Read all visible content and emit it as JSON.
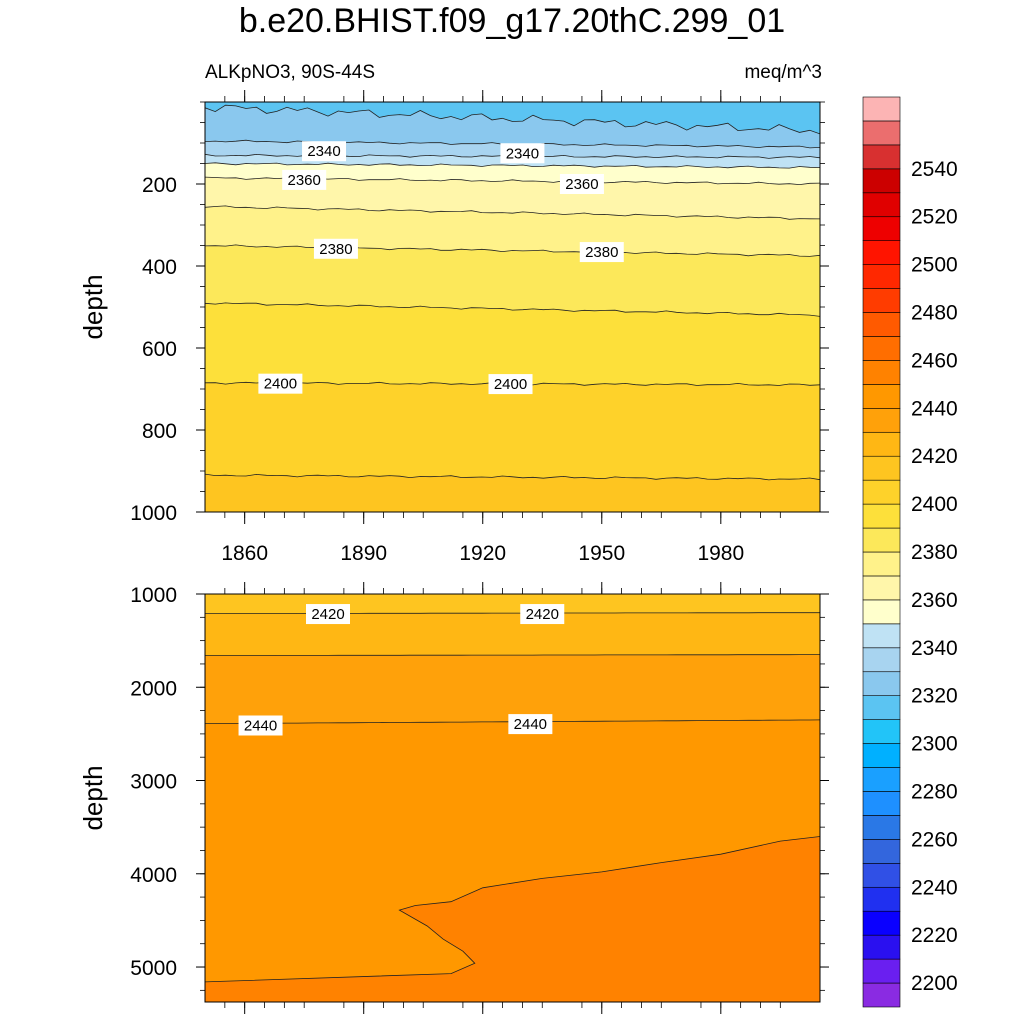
{
  "chart_data": {
    "type": "contour",
    "title": "b.e20.BHIST.f09_g17.20thC.299_01",
    "subtitle_left": "ALKpNO3, 90S-44S",
    "subtitle_right": "meq/m^3",
    "x_ticks": [
      "1860",
      "1890",
      "1920",
      "1950",
      "1980"
    ],
    "xlim": [
      1850,
      2005
    ],
    "ylabel": "depth",
    "panels": [
      {
        "name": "upper",
        "ylim": [
          0,
          1000
        ],
        "y_ticks": [
          "200",
          "400",
          "600",
          "800",
          "1000"
        ],
        "contour_lines": [
          {
            "level": 2320,
            "depth_start": 12,
            "depth_end": 70
          },
          {
            "level": 2330,
            "depth_start": 95,
            "depth_end": 110
          },
          {
            "level": 2340,
            "depth_start": 130,
            "depth_end": 135
          },
          {
            "level": 2350,
            "depth_start": 150,
            "depth_end": 160
          },
          {
            "level": 2360,
            "depth_start": 185,
            "depth_end": 200
          },
          {
            "level": 2370,
            "depth_start": 255,
            "depth_end": 285
          },
          {
            "level": 2380,
            "depth_start": 350,
            "depth_end": 375
          },
          {
            "level": 2390,
            "depth_start": 490,
            "depth_end": 520
          },
          {
            "level": 2400,
            "depth_start": 685,
            "depth_end": 690
          },
          {
            "level": 2410,
            "depth_start": 910,
            "depth_end": 920
          }
        ],
        "line_labels": [
          {
            "text": "2340",
            "x": 1880,
            "depth": 120
          },
          {
            "text": "2340",
            "x": 1930,
            "depth": 125
          },
          {
            "text": "2360",
            "x": 1875,
            "depth": 190
          },
          {
            "text": "2360",
            "x": 1945,
            "depth": 200
          },
          {
            "text": "2380",
            "x": 1883,
            "depth": 358
          },
          {
            "text": "2380",
            "x": 1950,
            "depth": 366
          },
          {
            "text": "2400",
            "x": 1869,
            "depth": 687
          },
          {
            "text": "2400",
            "x": 1927,
            "depth": 688
          }
        ]
      },
      {
        "name": "lower",
        "ylim": [
          1000,
          5375
        ],
        "y_ticks": [
          "1000",
          "2000",
          "3000",
          "4000",
          "5000"
        ],
        "contour_lines": [
          {
            "level": 2420,
            "depth_start": 1210,
            "depth_end": 1200
          },
          {
            "level": 2430,
            "depth_start": 1660,
            "depth_end": 1650
          },
          {
            "level": 2440,
            "depth_start": 2390,
            "depth_end": 2350
          },
          {
            "level": 2450,
            "depth_start": 5160,
            "depth_end": 3600
          }
        ],
        "line_labels": [
          {
            "text": "2420",
            "x": 1881,
            "depth": 1215
          },
          {
            "text": "2420",
            "x": 1935,
            "depth": 1215
          },
          {
            "text": "2440",
            "x": 1864,
            "depth": 2410
          },
          {
            "text": "2440",
            "x": 1932,
            "depth": 2395
          }
        ]
      }
    ],
    "colorbar": {
      "labels": [
        "2200",
        "2220",
        "2240",
        "2260",
        "2280",
        "2300",
        "2320",
        "2340",
        "2360",
        "2380",
        "2400",
        "2420",
        "2440",
        "2460",
        "2480",
        "2500",
        "2520",
        "2540"
      ],
      "colors": [
        "#8a2be2",
        "#6a1ff0",
        "#2a10f0",
        "#0a00ff",
        "#2030f0",
        "#3050e6",
        "#3366dd",
        "#2a78e6",
        "#1e90ff",
        "#1aa0ff",
        "#00b0ff",
        "#22c4f8",
        "#5bc4f2",
        "#8ac8ee",
        "#a8d4f0",
        "#bfe2f4",
        "#ffffcc",
        "#fff6aa",
        "#fff28a",
        "#fce85a",
        "#fde03a",
        "#fed22a",
        "#fec520",
        "#ffb714",
        "#ffa10a",
        "#ff9800",
        "#ff8200",
        "#ff6e00",
        "#ff5a00",
        "#ff3c00",
        "#ff2800",
        "#ff1400",
        "#ee0000",
        "#e00000",
        "#cc0000",
        "#d83030",
        "#eb6e6e",
        "#fcb4b4"
      ]
    }
  }
}
